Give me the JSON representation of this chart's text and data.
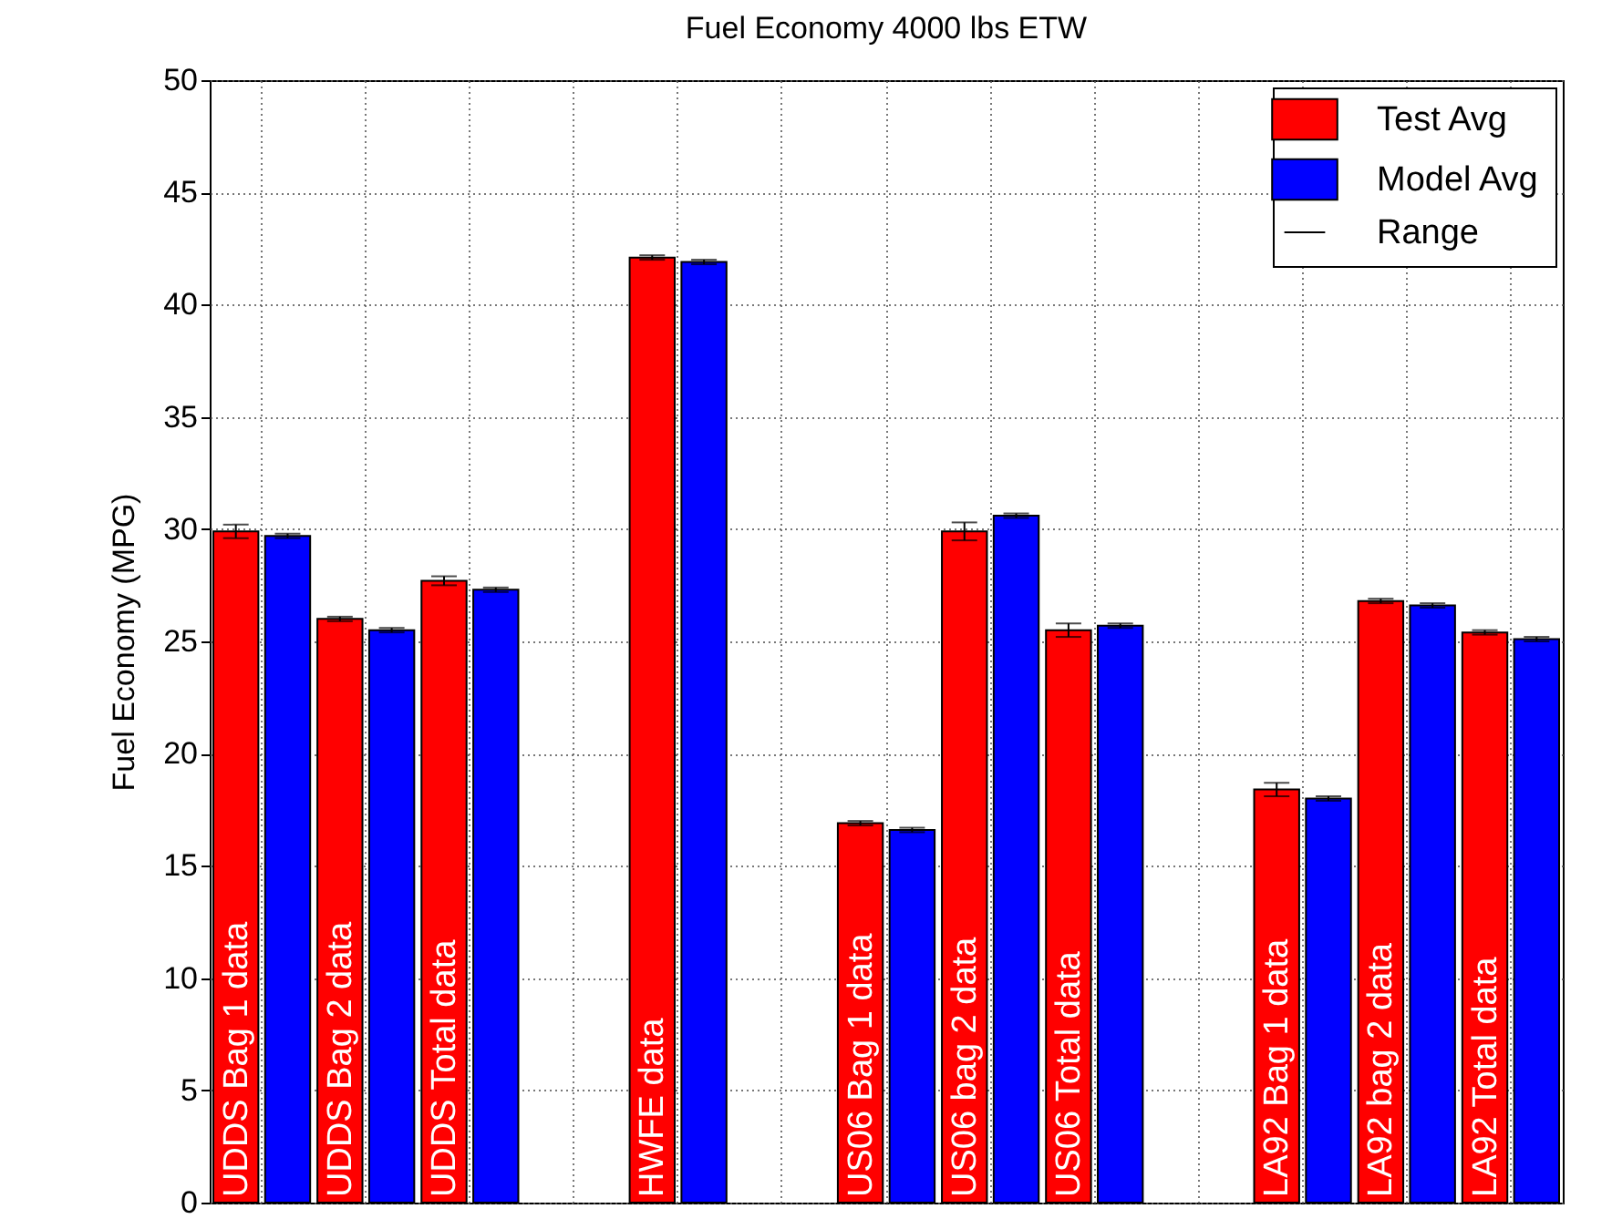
{
  "chart_data": {
    "type": "bar",
    "title": "Fuel Economy 4000 lbs ETW",
    "ylabel": "Fuel Economy (MPG)",
    "categories": [
      "UDDS Bag 1 data",
      "UDDS Bag 2 data",
      "UDDS Total data",
      null,
      "HWFE data",
      null,
      "US06 Bag 1 data",
      "US06 bag 2 data",
      "US06 Total data",
      null,
      "LA92 Bag 1 data",
      "LA92 bag 2 data",
      "LA92 Total data"
    ],
    "series": [
      {
        "name": "Test Avg",
        "color": "#ff0000",
        "values": [
          29.9,
          26.0,
          27.7,
          null,
          42.1,
          null,
          16.9,
          29.9,
          25.5,
          null,
          18.4,
          26.8,
          25.4
        ],
        "errors": [
          0.3,
          0.1,
          0.2,
          null,
          0.1,
          null,
          0.1,
          0.4,
          0.3,
          null,
          0.3,
          0.1,
          0.1
        ]
      },
      {
        "name": "Model Avg",
        "color": "#0000ff",
        "values": [
          29.7,
          25.5,
          27.3,
          null,
          41.9,
          null,
          16.6,
          30.6,
          25.7,
          null,
          18.0,
          26.6,
          25.1
        ],
        "errors": [
          0.1,
          0.1,
          0.1,
          null,
          0.1,
          null,
          0.1,
          0.1,
          0.1,
          null,
          0.1,
          0.1,
          0.1
        ]
      },
      {
        "name": "Range",
        "type": "line",
        "color": "#000000",
        "values": [
          null,
          null,
          null,
          null,
          null,
          null,
          null,
          null,
          null,
          null,
          null,
          null,
          null
        ]
      }
    ],
    "ylim": [
      0,
      50
    ],
    "yticks": [
      0,
      5,
      10,
      15,
      20,
      25,
      30,
      35,
      40,
      45,
      50
    ],
    "grid": true,
    "legend": "top right",
    "tick_labels": "y"
  }
}
